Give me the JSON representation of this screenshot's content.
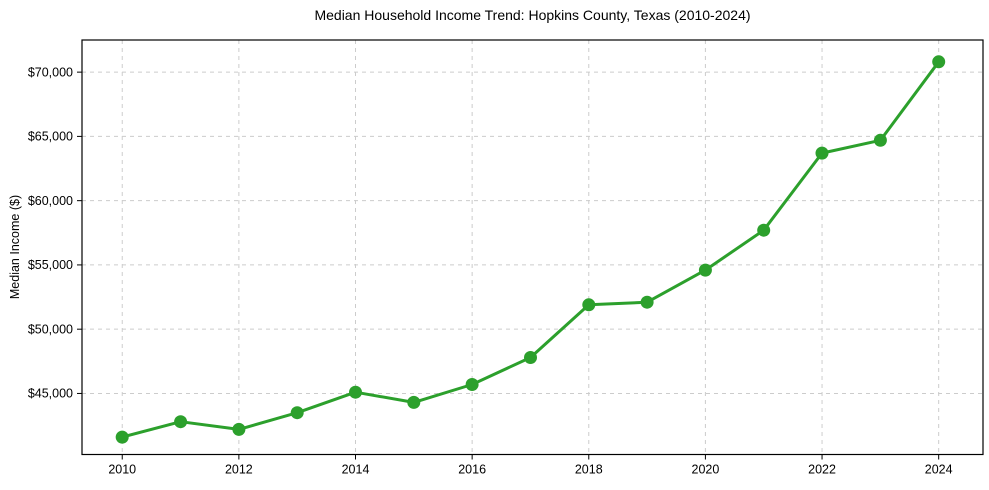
{
  "figure": {
    "title": "Median Household Income Trend: Hopkins County, Texas (2010-2024)"
  },
  "colors": {
    "background": "#ffffff",
    "line": "#2ca02c",
    "marker": "#2ca02c",
    "grid": "#cccccc",
    "spine": "#000000",
    "tick": "#000000",
    "text": "#000000"
  },
  "chart_data": {
    "type": "line",
    "title": "Median Household Income Trend: Hopkins County, Texas (2010-2024)",
    "xlabel": "",
    "ylabel": "Median Income ($)",
    "x": [
      2010,
      2011,
      2012,
      2013,
      2014,
      2015,
      2016,
      2017,
      2018,
      2019,
      2020,
      2021,
      2022,
      2023,
      2024
    ],
    "series": [
      {
        "name": "Median Household Income",
        "values": [
          41600,
          42800,
          42200,
          43500,
          45100,
          44300,
          45700,
          47800,
          51900,
          52100,
          54600,
          57700,
          63700,
          64700,
          70800
        ]
      }
    ],
    "xticks": [
      2010,
      2012,
      2014,
      2016,
      2018,
      2020,
      2022,
      2024
    ],
    "yticks": [
      45000,
      50000,
      55000,
      60000,
      65000,
      70000
    ],
    "ytick_prefix": "$",
    "xlim": [
      2009.31,
      2024.76
    ],
    "ylim": [
      40250,
      72500
    ],
    "grid": true,
    "grid_style": "dashed",
    "legend": "none",
    "marker": "circle",
    "marker_size": 6.5,
    "line_width": 3
  }
}
